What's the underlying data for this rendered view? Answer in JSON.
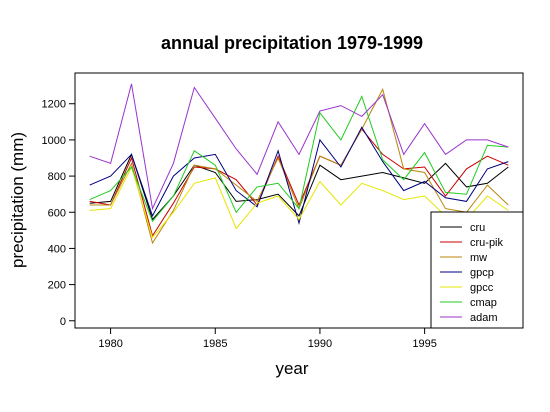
{
  "chart_data": {
    "type": "line",
    "title": "annual precipitation 1979-1999",
    "xlabel": "year",
    "ylabel": "precipitation (mm)",
    "xlim": [
      1978.3,
      1999.7
    ],
    "ylim": [
      -40,
      1370
    ],
    "x_ticks": [
      1980,
      1985,
      1990,
      1995
    ],
    "y_ticks": [
      0,
      200,
      400,
      600,
      800,
      1000,
      1200
    ],
    "legend_position": "bottom-right",
    "grid": false,
    "x": [
      1979,
      1980,
      1981,
      1982,
      1983,
      1984,
      1985,
      1986,
      1987,
      1988,
      1989,
      1990,
      1991,
      1992,
      1993,
      1994,
      1995,
      1996,
      1997,
      1998,
      1999
    ],
    "series": [
      {
        "name": "cru",
        "color": "#000000",
        "values": [
          650,
          660,
          920,
          560,
          690,
          860,
          820,
          660,
          670,
          700,
          580,
          860,
          780,
          800,
          820,
          790,
          760,
          870,
          740,
          760,
          850
        ]
      },
      {
        "name": "cru-pik",
        "color": "#cc0000",
        "values": [
          660,
          640,
          900,
          470,
          650,
          850,
          840,
          780,
          640,
          910,
          640,
          910,
          860,
          1060,
          920,
          840,
          850,
          690,
          840,
          910,
          860
        ]
      },
      {
        "name": "mw",
        "color": "#b8860b",
        "values": [
          640,
          640,
          870,
          430,
          610,
          860,
          840,
          750,
          660,
          900,
          620,
          910,
          860,
          1060,
          1280,
          840,
          820,
          620,
          600,
          750,
          640
        ]
      },
      {
        "name": "gpcp",
        "color": "#000080",
        "values": [
          750,
          800,
          920,
          580,
          800,
          900,
          920,
          720,
          630,
          940,
          540,
          1000,
          850,
          1070,
          880,
          720,
          770,
          680,
          660,
          840,
          880
        ]
      },
      {
        "name": "gpcc",
        "color": "#e6e600",
        "values": [
          610,
          620,
          850,
          460,
          600,
          760,
          790,
          510,
          650,
          690,
          560,
          770,
          640,
          760,
          720,
          670,
          690,
          580,
          560,
          690,
          610
        ]
      },
      {
        "name": "cmap",
        "color": "#22cc22",
        "values": [
          670,
          720,
          850,
          550,
          690,
          940,
          860,
          600,
          740,
          760,
          620,
          1150,
          1000,
          1240,
          890,
          780,
          930,
          710,
          700,
          970,
          960
        ]
      },
      {
        "name": "adam",
        "color": "#9933cc",
        "values": [
          910,
          870,
          1310,
          620,
          870,
          1290,
          1120,
          950,
          810,
          1100,
          920,
          1160,
          1190,
          1130,
          1250,
          920,
          1090,
          920,
          1000,
          1000,
          960
        ]
      }
    ]
  }
}
